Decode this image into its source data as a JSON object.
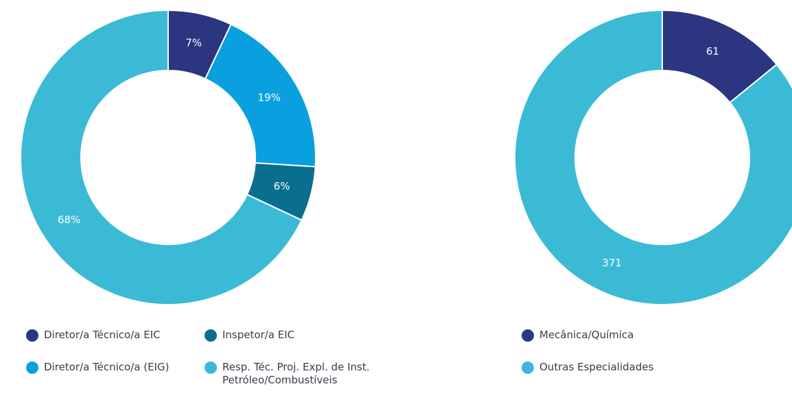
{
  "chart_data": [
    {
      "type": "donut",
      "categories": [
        "Diretor/a Técnico/a EIC",
        "Diretor/a Técnico/a (EIG)",
        "Inspetor/a EIC",
        "Resp. Téc. Proj. Expl. de Inst. Petróleo/Combustíveis"
      ],
      "values": [
        7,
        19,
        6,
        68
      ],
      "value_labels": [
        "7%",
        "19%",
        "6%",
        "68%"
      ],
      "colors": [
        "#2b3580",
        "#0aa0e0",
        "#0a6f8f",
        "#3bbad6"
      ],
      "legend": "bottom"
    },
    {
      "type": "donut",
      "categories": [
        "Mecânica/Química",
        "Outras Especialidades"
      ],
      "values": [
        61,
        371
      ],
      "colors": [
        "#2b3580",
        "#3bbad6"
      ],
      "legend": "bottom"
    }
  ]
}
